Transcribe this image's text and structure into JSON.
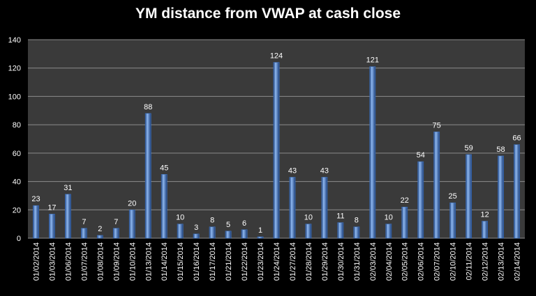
{
  "chart_data": {
    "type": "bar",
    "title": "YM distance from VWAP at cash close",
    "xlabel": "",
    "ylabel": "",
    "ylim": [
      0,
      140
    ],
    "yticks": [
      0,
      20,
      40,
      60,
      80,
      100,
      120,
      140
    ],
    "grid": true,
    "legend": "none",
    "categories": [
      "01/02/2014",
      "01/03/2014",
      "01/06/2014",
      "01/07/2014",
      "01/08/2014",
      "01/09/2014",
      "01/10/2014",
      "01/13/2014",
      "01/14/2014",
      "01/15/2014",
      "01/16/2014",
      "01/17/2014",
      "01/21/2014",
      "01/22/2014",
      "01/23/2014",
      "01/24/2014",
      "01/27/2014",
      "01/28/2014",
      "01/29/2014",
      "01/30/2014",
      "01/31/2014",
      "02/03/2014",
      "02/04/2014",
      "02/05/2014",
      "02/06/2014",
      "02/07/2014",
      "02/10/2014",
      "02/11/2014",
      "02/12/2014",
      "02/13/2014",
      "02/14/2014"
    ],
    "values": [
      23,
      17,
      31,
      7,
      2,
      7,
      20,
      88,
      45,
      10,
      3,
      8,
      5,
      6,
      1,
      124,
      43,
      10,
      43,
      11,
      8,
      121,
      10,
      22,
      54,
      75,
      25,
      59,
      12,
      58,
      66
    ],
    "colors": {
      "background": "#000000",
      "plot_area": "#3a3a3a",
      "gridline": "#8c8c8c",
      "bar_light": "#8fb8f0",
      "bar_mid": "#3f78cc",
      "bar_dark": "#1c3f7a"
    }
  }
}
